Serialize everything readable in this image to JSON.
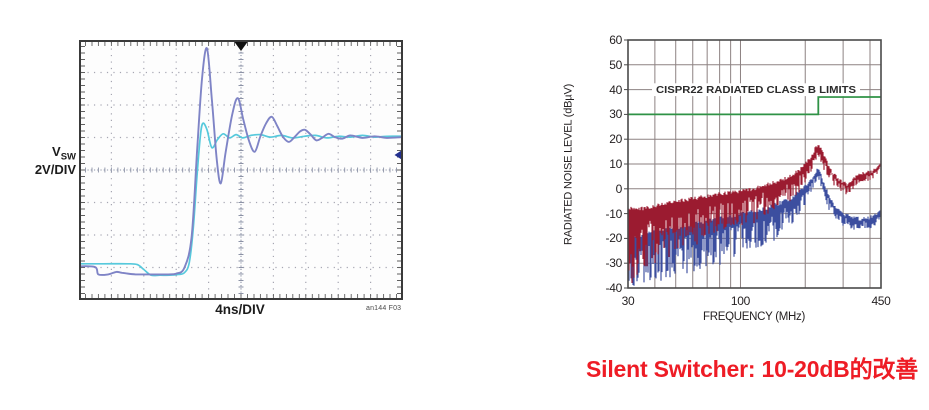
{
  "caption": {
    "text": "Silent Switcher: 10-20dB的改善",
    "color": "#EE1C25"
  },
  "scope": {
    "y_label_main": "V",
    "y_label_sub": "SW",
    "y_scale": "2V/DIV",
    "x_scale": "4ns/DIV",
    "fig_note": "an144 F03",
    "colors": {
      "conventional": "#7F84C6",
      "silent": "#56C9DC",
      "grid": "#A6A6B2",
      "center_grid": "#8C92A6",
      "edge_ticks": "#606060",
      "border": "#3A3A3A",
      "trigger": "#101010",
      "marker": "#23308F",
      "bg": "#FDFDFD"
    }
  },
  "emi": {
    "ylabel": "RADIATED NOISE LEVEL (dBµV)",
    "xlabel": "FREQUENCY (MHz)",
    "colors": {
      "grid": "#8D8282",
      "border": "#4A4A4A",
      "limit": "#2F9246",
      "conventional": "#9B1B30",
      "silent": "#3C4E9F",
      "text": "#231F20",
      "bg": "#FFFFFF"
    }
  },
  "chart_data": [
    {
      "id": "scope",
      "type": "line",
      "x_units": "ns",
      "x_per_div": 4,
      "x_divs": 10,
      "y_units": "V",
      "y_per_div": 2,
      "y_divs": 8,
      "xlim": [
        0,
        40
      ],
      "ylim": [
        -8,
        8
      ],
      "xlabel": "4ns/DIV",
      "ylabel": "VSW 2V/DIV",
      "trigger_marker_x": 20,
      "side_marker_y": 1.05,
      "series": [
        {
          "name": "conventional-switcher-vsw",
          "x": [
            0,
            2.0,
            2.4,
            3.6,
            4.6,
            5.3,
            7.0,
            9.0,
            11.0,
            12.0,
            13.0,
            13.9,
            14.6,
            15.2,
            15.8,
            16.4,
            17.0,
            17.5,
            18.1,
            18.9,
            19.6,
            20.3,
            21.0,
            21.7,
            22.4,
            23.1,
            23.8,
            24.5,
            25.2,
            25.9,
            26.6,
            27.3,
            27.9,
            28.6,
            29.3,
            30.0,
            30.8,
            31.6,
            32.5,
            33.5,
            35.0,
            36.5,
            38.0,
            40.0
          ],
          "y": [
            -5.8,
            -5.85,
            -6.3,
            -6.3,
            -6.15,
            -6.2,
            -6.3,
            -6.3,
            -6.3,
            -6.25,
            -5.9,
            -4.0,
            1.5,
            5.8,
            7.6,
            4.5,
            0.8,
            -0.7,
            1.2,
            3.5,
            4.55,
            3.2,
            1.9,
            1.25,
            2.2,
            3.0,
            3.4,
            2.8,
            2.15,
            1.85,
            2.15,
            2.5,
            2.6,
            2.3,
            1.95,
            2.1,
            2.35,
            2.15,
            2.05,
            2.25,
            2.1,
            2.2,
            2.1,
            2.15
          ]
        },
        {
          "name": "silent-switcher-vsw",
          "x": [
            0,
            3,
            6,
            7.2,
            8.0,
            8.9,
            10.0,
            11.2,
            12.3,
            13.0,
            13.6,
            14.1,
            14.6,
            15.0,
            15.3,
            15.8,
            16.4,
            17.1,
            17.8,
            18.6,
            19.4,
            20.2,
            21.2,
            22.4,
            23.6,
            25.0,
            26.4,
            27.8,
            29.2,
            30.6,
            32.0,
            33.5,
            35.0,
            36.5,
            38.0,
            40.0
          ],
          "y": [
            -5.65,
            -5.65,
            -5.65,
            -5.7,
            -6.0,
            -6.35,
            -6.35,
            -6.35,
            -6.3,
            -6.2,
            -5.6,
            -3.5,
            0.0,
            2.3,
            3.0,
            2.6,
            1.5,
            2.0,
            2.35,
            2.1,
            2.3,
            2.1,
            2.25,
            2.3,
            2.15,
            2.25,
            2.1,
            2.2,
            2.25,
            2.1,
            2.2,
            2.15,
            2.25,
            2.15,
            2.2,
            2.2
          ]
        }
      ]
    },
    {
      "id": "emi",
      "type": "line",
      "x_scale": "log",
      "xlim": [
        30,
        450
      ],
      "ylim": [
        -40,
        60
      ],
      "xlabel": "FREQUENCY (MHz)",
      "ylabel": "RADIATED NOISE LEVEL (dBµV)",
      "x_ticks_labeled": [
        30,
        100,
        450
      ],
      "x_gridlines": [
        40,
        50,
        60,
        70,
        80,
        90,
        100,
        200,
        300,
        400
      ],
      "y_ticks": [
        60,
        50,
        40,
        30,
        20,
        10,
        0,
        -10,
        -20,
        -30,
        -40
      ],
      "limit_line": {
        "label": "CISPR22 RADIATED CLASS B LIMITS",
        "points": [
          [
            30,
            30
          ],
          [
            230,
            30
          ],
          [
            230,
            37
          ],
          [
            450,
            37
          ]
        ]
      },
      "series": [
        {
          "name": "conventional-regulator-noise",
          "style": "noise-band",
          "envelope": [
            [
              30,
              -8,
              -40
            ],
            [
              35,
              -8,
              -35
            ],
            [
              40,
              -7,
              -30
            ],
            [
              50,
              -5,
              -27
            ],
            [
              60,
              -4,
              -24
            ],
            [
              70,
              -3,
              -22
            ],
            [
              80,
              -2,
              -20
            ],
            [
              90,
              -1.5,
              -18
            ],
            [
              100,
              -1,
              -16
            ],
            [
              115,
              0,
              -14
            ],
            [
              130,
              1.5,
              -11
            ],
            [
              150,
              3,
              -8
            ],
            [
              170,
              5,
              -5
            ],
            [
              190,
              8,
              -1
            ],
            [
              210,
              12,
              5
            ],
            [
              225,
              17,
              12
            ],
            [
              232,
              18,
              13
            ],
            [
              240,
              15,
              9
            ],
            [
              255,
              10,
              4
            ],
            [
              270,
              6,
              1
            ],
            [
              285,
              4,
              -1
            ],
            [
              300,
              2.5,
              -2
            ],
            [
              315,
              1.5,
              -3
            ],
            [
              330,
              3,
              -1
            ],
            [
              350,
              5.5,
              2
            ],
            [
              370,
              6,
              2.5
            ],
            [
              390,
              6.5,
              3
            ],
            [
              410,
              7,
              3.5
            ],
            [
              430,
              8.5,
              5
            ],
            [
              450,
              11,
              7
            ]
          ]
        },
        {
          "name": "silent-switcher-noise",
          "style": "noise-band",
          "envelope": [
            [
              30,
              -20,
              -40
            ],
            [
              35,
              -19,
              -39
            ],
            [
              40,
              -17,
              -38
            ],
            [
              50,
              -16,
              -36
            ],
            [
              60,
              -14,
              -34
            ],
            [
              70,
              -13,
              -32
            ],
            [
              80,
              -12,
              -31
            ],
            [
              90,
              -11,
              -29
            ],
            [
              100,
              -10,
              -27
            ],
            [
              115,
              -9,
              -25
            ],
            [
              130,
              -8,
              -23
            ],
            [
              150,
              -6,
              -20
            ],
            [
              170,
              -4,
              -16
            ],
            [
              190,
              -1,
              -11
            ],
            [
              210,
              3,
              -4
            ],
            [
              225,
              7,
              2
            ],
            [
              232,
              8,
              3
            ],
            [
              240,
              4,
              -2
            ],
            [
              255,
              -2,
              -8
            ],
            [
              270,
              -6,
              -11
            ],
            [
              285,
              -8,
              -13
            ],
            [
              300,
              -10,
              -15
            ],
            [
              320,
              -11,
              -16
            ],
            [
              340,
              -12,
              -17
            ],
            [
              360,
              -12,
              -17
            ],
            [
              380,
              -12,
              -16.5
            ],
            [
              400,
              -11.5,
              -16
            ],
            [
              425,
              -10.5,
              -15
            ],
            [
              450,
              -9,
              -13.5
            ]
          ]
        }
      ]
    }
  ]
}
